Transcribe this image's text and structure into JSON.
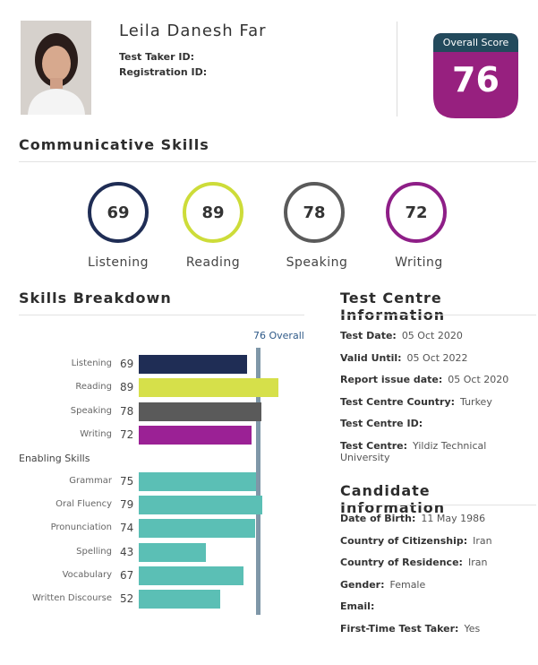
{
  "candidate": {
    "name": "Leila Danesh Far",
    "test_taker_id_label": "Test Taker ID:",
    "registration_id_label": "Registration ID:"
  },
  "overall": {
    "label": "Overall Score",
    "score": "76"
  },
  "communicative": {
    "title": "Communicative Skills",
    "skills": [
      {
        "name": "Listening",
        "score": "69",
        "color": "#1f2d55"
      },
      {
        "name": "Reading",
        "score": "89",
        "color": "#cddc39"
      },
      {
        "name": "Speaking",
        "score": "78",
        "color": "#5a5a5a"
      },
      {
        "name": "Writing",
        "score": "72",
        "color": "#8e1e87"
      }
    ]
  },
  "breakdown": {
    "title": "Skills Breakdown",
    "overall_label": "76 Overall",
    "overall_value": 76,
    "enabling_title": "Enabling Skills",
    "communicative_bars": [
      {
        "label": "Listening",
        "value": 69,
        "color": "#1f2d55"
      },
      {
        "label": "Reading",
        "value": 89,
        "color": "#d6e04a"
      },
      {
        "label": "Speaking",
        "value": 78,
        "color": "#5a5a5a"
      },
      {
        "label": "Writing",
        "value": 72,
        "color": "#9b2195"
      }
    ],
    "enabling_bars": [
      {
        "label": "Grammar",
        "value": 75,
        "color": "#5bbfb5"
      },
      {
        "label": "Oral Fluency",
        "value": 79,
        "color": "#5bbfb5"
      },
      {
        "label": "Pronunciation",
        "value": 74,
        "color": "#5bbfb5"
      },
      {
        "label": "Spelling",
        "value": 43,
        "color": "#5bbfb5"
      },
      {
        "label": "Vocabulary",
        "value": 67,
        "color": "#5bbfb5"
      },
      {
        "label": "Written Discourse",
        "value": 52,
        "color": "#5bbfb5"
      }
    ]
  },
  "test_centre": {
    "title": "Test Centre Information",
    "rows": [
      {
        "label": "Test Date:",
        "value": "05 Oct 2020"
      },
      {
        "label": "Valid Until:",
        "value": "05 Oct 2022"
      },
      {
        "label": "Report issue date:",
        "value": "05 Oct 2020"
      },
      {
        "label": "Test Centre Country:",
        "value": "Turkey"
      },
      {
        "label": "Test Centre ID:",
        "value": ""
      },
      {
        "label": "Test Centre:",
        "value": "Yildiz Technical University"
      }
    ]
  },
  "candidate_info": {
    "title": "Candidate Information",
    "rows": [
      {
        "label": "Date of Birth:",
        "value": "11 May 1986"
      },
      {
        "label": "Country of Citizenship:",
        "value": "Iran"
      },
      {
        "label": "Country of Residence:",
        "value": "Iran"
      },
      {
        "label": "Gender:",
        "value": "Female"
      },
      {
        "label": "Email:",
        "value": ""
      },
      {
        "label": "First-Time Test Taker:",
        "value": "Yes"
      }
    ]
  }
}
